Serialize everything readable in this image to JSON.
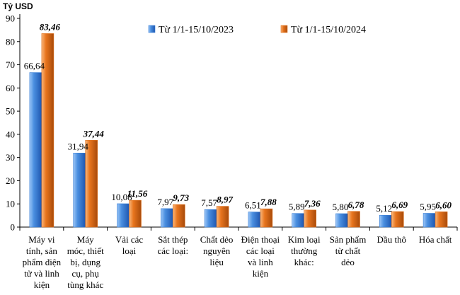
{
  "chart_data": {
    "type": "bar",
    "ylabel": "Tỷ USD",
    "ylim": [
      0,
      90
    ],
    "yticks": [
      0,
      10,
      20,
      30,
      40,
      50,
      60,
      70,
      80,
      90
    ],
    "grid": false,
    "legend_position": "top-right",
    "categories": [
      [
        "Máy vi",
        "tính, sản",
        "phẩm điện",
        "tử và linh",
        "kiện"
      ],
      [
        "Máy",
        "móc, thiết",
        "bị, dụng",
        "cụ, phụ",
        "tùng khác"
      ],
      [
        "Vải các",
        "loại"
      ],
      [
        "Sắt thép",
        "các loại:"
      ],
      [
        "Chất dẻo",
        "nguyên",
        "liệu"
      ],
      [
        "Điện thoại",
        "các loại",
        "và linh",
        "kiện"
      ],
      [
        "Kim loại",
        "thường",
        "khác:"
      ],
      [
        "Sản phẩm",
        "từ chất",
        "dẻo"
      ],
      [
        "Dầu thô"
      ],
      [
        "Hóa chất"
      ]
    ],
    "series": [
      {
        "name": "Từ 1/1-15/10/2023",
        "color": "#3a7fd5",
        "values": [
          66.64,
          31.94,
          10.08,
          7.97,
          7.57,
          6.51,
          5.89,
          5.8,
          5.12,
          5.95
        ],
        "labels": [
          "66,64",
          "31,94",
          "10,08",
          "7,97",
          "7,57",
          "6,51",
          "5,89",
          "5,80",
          "5,12",
          "5,95"
        ]
      },
      {
        "name": "Từ 1/1-15/10/2024",
        "color": "#e0711c",
        "values": [
          83.46,
          37.44,
          11.56,
          9.73,
          8.97,
          7.88,
          7.36,
          6.78,
          6.69,
          6.6
        ],
        "labels": [
          "83,46",
          "37,44",
          "11,56",
          "9,73",
          "8,97",
          "7,88",
          "7,36",
          "6,78",
          "6,69",
          "6,60"
        ]
      }
    ]
  }
}
